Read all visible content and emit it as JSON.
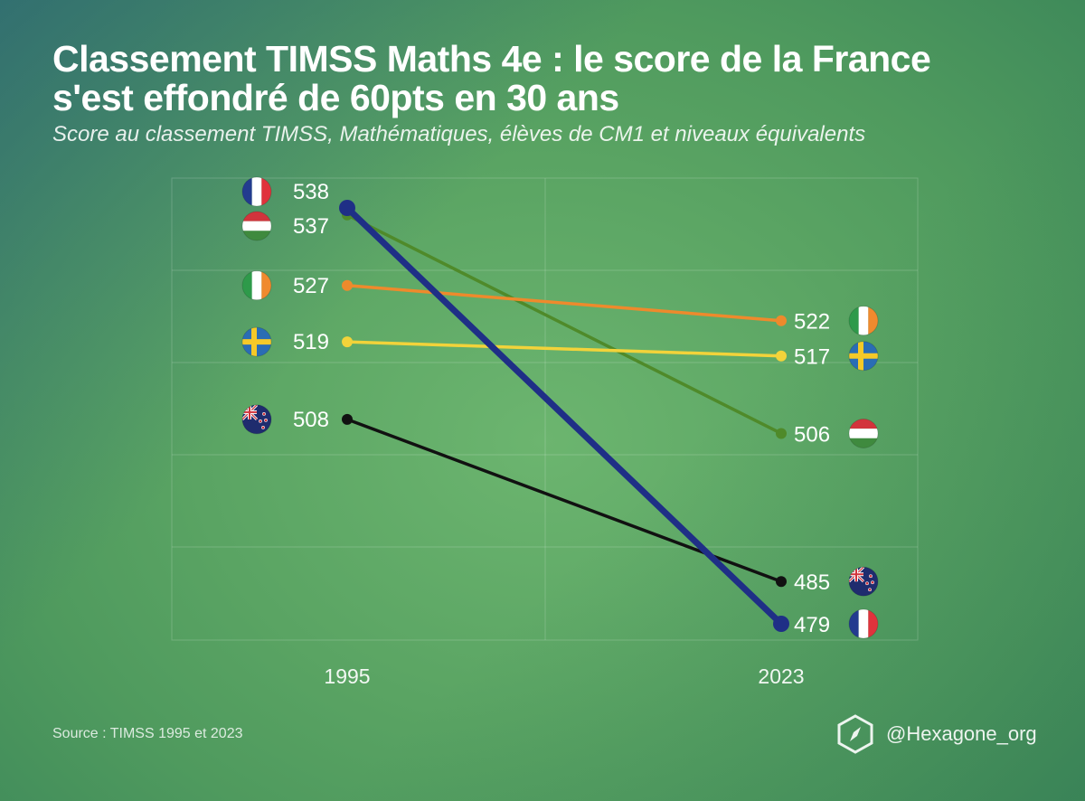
{
  "header": {
    "title_line1": "Classement TIMSS Maths 4e : le score de  la France",
    "title_line2": "s'est effondré de 60pts en 30 ans",
    "subtitle": "Score au classement TIMSS, Mathématiques, élèves de CM1 et niveaux équivalents"
  },
  "footer": {
    "source": "Source : TIMSS 1995 et 2023",
    "brand": "@Hexagone_org",
    "brand_icon": "hexagon-compass-icon"
  },
  "chart_data": {
    "type": "slope",
    "x": [
      "1995",
      "2023"
    ],
    "ylim": [
      470,
      540
    ],
    "grid": true,
    "series": [
      {
        "country": "France",
        "flag": "france-flag-icon",
        "color": "#1f2f86",
        "values": [
          538,
          479
        ],
        "emphasis": true
      },
      {
        "country": "Hungary",
        "flag": "hungary-flag-icon",
        "color": "#4f8a2a",
        "values": [
          537,
          506
        ]
      },
      {
        "country": "Ireland",
        "flag": "ireland-flag-icon",
        "color": "#ee8a2c",
        "values": [
          527,
          522
        ]
      },
      {
        "country": "Sweden",
        "flag": "sweden-flag-icon",
        "color": "#f2d33a",
        "values": [
          519,
          517
        ]
      },
      {
        "country": "New Zealand",
        "flag": "new-zealand-flag-icon",
        "color": "#111111",
        "values": [
          508,
          485
        ]
      }
    ]
  }
}
